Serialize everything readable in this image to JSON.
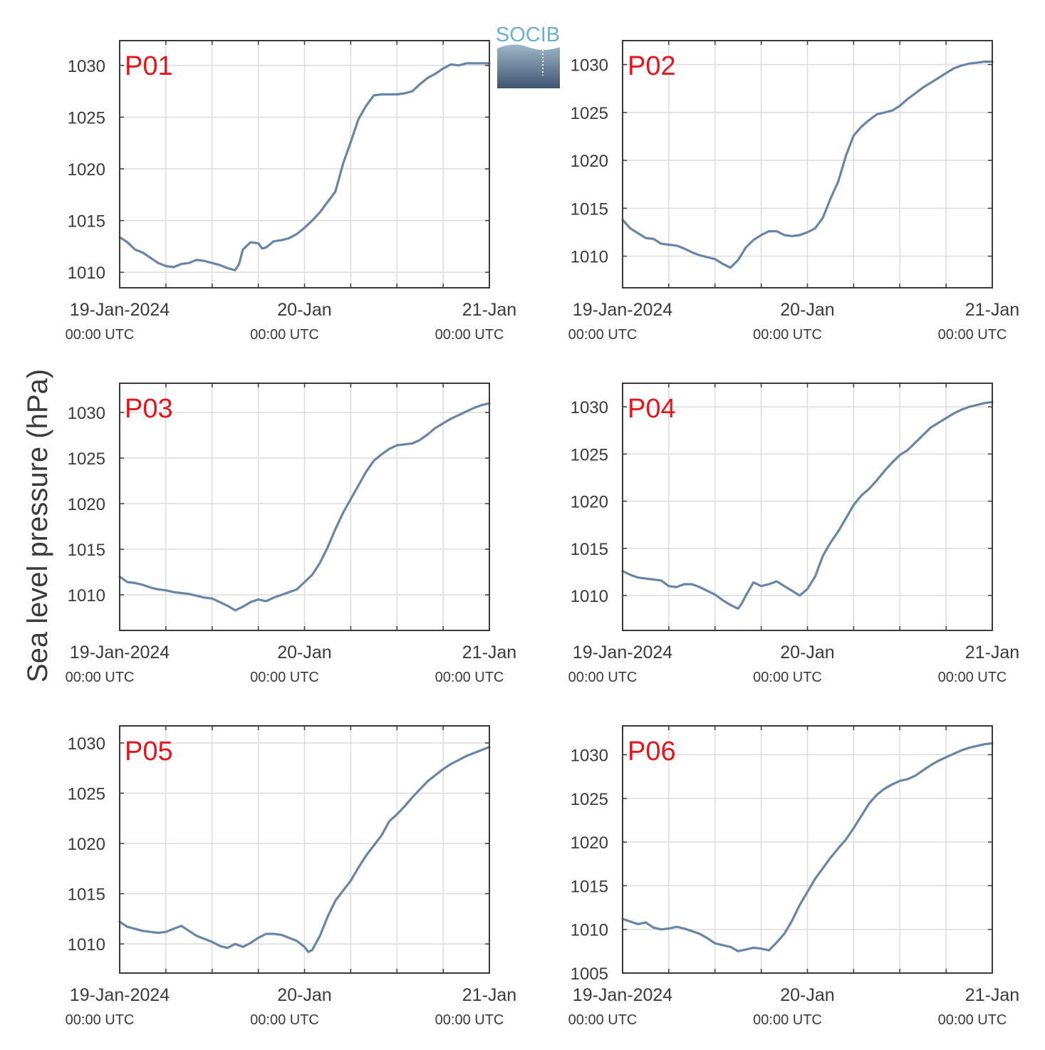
{
  "figure": {
    "ylabel": "Sea level pressure (hPa)",
    "logo_text": "SOCIB",
    "x_tick_labels": [
      "19-Jan-2024",
      "20-Jan",
      "21-Jan"
    ],
    "x_tick_sublabels": [
      "00:00 UTC",
      "00:00 UTC",
      "00:00 UTC"
    ],
    "colors": {
      "line": "#6885a6",
      "label": "#e8141c",
      "grid": "#dcdcdc",
      "axes": "#3a3a3a"
    }
  },
  "chart_data": [
    {
      "type": "line",
      "title": "P01",
      "x_unit": "hours since 19-Jan-2024 00:00 UTC",
      "xlim": [
        0,
        48
      ],
      "ylim": [
        1008.5,
        1032.4
      ],
      "yticks": [
        1010,
        1015,
        1020,
        1025,
        1030
      ],
      "grid": true,
      "x": [
        0,
        1,
        2,
        3,
        4,
        5,
        6,
        7,
        8,
        9,
        10,
        11,
        12,
        13,
        14,
        15,
        15.5,
        16,
        17,
        18,
        18.5,
        19,
        20,
        21,
        22,
        23,
        24,
        25,
        26,
        27,
        28,
        29,
        30,
        31,
        32,
        33,
        34,
        35,
        36,
        37,
        38,
        39,
        40,
        41,
        42,
        43,
        44,
        45,
        46,
        47,
        48
      ],
      "y": [
        1013.4,
        1012.9,
        1012.2,
        1011.9,
        1011.4,
        1010.9,
        1010.6,
        1010.5,
        1010.8,
        1010.9,
        1011.2,
        1011.1,
        1010.9,
        1010.7,
        1010.4,
        1010.2,
        1010.8,
        1012.2,
        1012.9,
        1012.8,
        1012.3,
        1012.4,
        1013.0,
        1013.1,
        1013.3,
        1013.7,
        1014.3,
        1015.0,
        1015.8,
        1016.8,
        1017.8,
        1020.5,
        1022.6,
        1024.8,
        1026.1,
        1027.1,
        1027.2,
        1027.2,
        1027.2,
        1027.3,
        1027.5,
        1028.2,
        1028.8,
        1029.2,
        1029.7,
        1030.1,
        1030.0,
        1030.2,
        1030.2,
        1030.2,
        1030.2
      ]
    },
    {
      "type": "line",
      "title": "P02",
      "x_unit": "hours since 19-Jan-2024 00:00 UTC",
      "xlim": [
        0,
        48
      ],
      "ylim": [
        1006.7,
        1032.5
      ],
      "yticks": [
        1010,
        1015,
        1020,
        1025,
        1030
      ],
      "grid": true,
      "x": [
        0,
        1,
        2,
        3,
        4,
        5,
        6,
        7,
        8,
        9,
        10,
        11,
        12,
        13,
        14,
        15,
        16,
        17,
        18,
        19,
        20,
        21,
        22,
        23,
        24,
        25,
        26,
        27,
        28,
        29,
        30,
        31,
        32,
        33,
        34,
        35,
        36,
        37,
        38,
        39,
        40,
        41,
        42,
        43,
        44,
        45,
        46,
        47,
        48
      ],
      "y": [
        1013.8,
        1012.9,
        1012.4,
        1011.9,
        1011.8,
        1011.3,
        1011.2,
        1011.1,
        1010.8,
        1010.4,
        1010.1,
        1009.9,
        1009.7,
        1009.2,
        1008.8,
        1009.6,
        1010.9,
        1011.7,
        1012.2,
        1012.6,
        1012.6,
        1012.2,
        1012.1,
        1012.2,
        1012.5,
        1012.9,
        1014.0,
        1016.0,
        1017.8,
        1020.5,
        1022.6,
        1023.5,
        1024.2,
        1024.8,
        1025.0,
        1025.2,
        1025.7,
        1026.4,
        1027.0,
        1027.6,
        1028.1,
        1028.6,
        1029.1,
        1029.6,
        1029.9,
        1030.1,
        1030.2,
        1030.3,
        1030.3
      ]
    },
    {
      "type": "line",
      "title": "P03",
      "x_unit": "hours since 19-Jan-2024 00:00 UTC",
      "xlim": [
        0,
        48
      ],
      "ylim": [
        1006.1,
        1033.2
      ],
      "yticks": [
        1010,
        1015,
        1020,
        1025,
        1030
      ],
      "grid": true,
      "x": [
        0,
        1,
        2,
        3,
        4,
        5,
        6,
        7,
        8,
        9,
        10,
        11,
        12,
        13,
        14,
        15,
        16,
        17,
        18,
        19,
        20,
        21,
        22,
        23,
        24,
        25,
        26,
        27,
        28,
        29,
        30,
        31,
        32,
        33,
        34,
        35,
        36,
        37,
        38,
        39,
        40,
        41,
        42,
        43,
        44,
        45,
        46,
        47,
        48
      ],
      "y": [
        1012.0,
        1011.4,
        1011.3,
        1011.1,
        1010.8,
        1010.6,
        1010.5,
        1010.3,
        1010.2,
        1010.1,
        1009.9,
        1009.7,
        1009.6,
        1009.2,
        1008.8,
        1008.3,
        1008.7,
        1009.2,
        1009.5,
        1009.3,
        1009.7,
        1010.0,
        1010.3,
        1010.6,
        1011.4,
        1012.2,
        1013.5,
        1015.2,
        1017.2,
        1019.0,
        1020.5,
        1022.0,
        1023.5,
        1024.7,
        1025.4,
        1026.0,
        1026.4,
        1026.5,
        1026.6,
        1027.0,
        1027.6,
        1028.3,
        1028.8,
        1029.3,
        1029.7,
        1030.1,
        1030.5,
        1030.8,
        1031.0
      ]
    },
    {
      "type": "line",
      "title": "P04",
      "x_unit": "hours since 19-Jan-2024 00:00 UTC",
      "xlim": [
        0,
        48
      ],
      "ylim": [
        1006.3,
        1032.5
      ],
      "yticks": [
        1010,
        1015,
        1020,
        1025,
        1030
      ],
      "grid": true,
      "x": [
        0,
        1,
        2,
        3,
        4,
        5,
        6,
        7,
        8,
        9,
        10,
        11,
        12,
        13,
        14,
        15,
        15.5,
        16,
        17,
        18,
        19,
        20,
        21,
        22,
        23,
        24,
        25,
        26,
        27,
        28,
        29,
        30,
        31,
        32,
        33,
        34,
        35,
        36,
        37,
        38,
        39,
        40,
        41,
        42,
        43,
        44,
        45,
        46,
        47,
        48
      ],
      "y": [
        1012.6,
        1012.2,
        1011.9,
        1011.8,
        1011.7,
        1011.6,
        1011.0,
        1010.9,
        1011.2,
        1011.2,
        1010.9,
        1010.5,
        1010.1,
        1009.5,
        1009.0,
        1008.6,
        1009.2,
        1010.0,
        1011.4,
        1011.0,
        1011.2,
        1011.5,
        1011.0,
        1010.5,
        1010.0,
        1010.7,
        1012.0,
        1014.2,
        1015.6,
        1016.8,
        1018.2,
        1019.6,
        1020.6,
        1021.3,
        1022.2,
        1023.2,
        1024.1,
        1024.9,
        1025.4,
        1026.2,
        1027.0,
        1027.8,
        1028.3,
        1028.8,
        1029.3,
        1029.7,
        1030.0,
        1030.2,
        1030.4,
        1030.5
      ]
    },
    {
      "type": "line",
      "title": "P05",
      "x_unit": "hours since 19-Jan-2024 00:00 UTC",
      "xlim": [
        0,
        48
      ],
      "ylim": [
        1007.1,
        1031.7
      ],
      "yticks": [
        1010,
        1015,
        1020,
        1025,
        1030
      ],
      "grid": true,
      "x": [
        0,
        1,
        2,
        3,
        4,
        5,
        6,
        7,
        8,
        9,
        10,
        11,
        12,
        13,
        14,
        15,
        16,
        17,
        18,
        19,
        20,
        21,
        22,
        23,
        24,
        24.5,
        25,
        26,
        27,
        28,
        29,
        30,
        31,
        32,
        33,
        34,
        35,
        36,
        37,
        38,
        39,
        40,
        41,
        42,
        43,
        44,
        45,
        46,
        47,
        48
      ],
      "y": [
        1012.2,
        1011.7,
        1011.5,
        1011.3,
        1011.2,
        1011.1,
        1011.2,
        1011.5,
        1011.8,
        1011.3,
        1010.8,
        1010.5,
        1010.2,
        1009.8,
        1009.6,
        1010.0,
        1009.7,
        1010.1,
        1010.6,
        1011.0,
        1011.0,
        1010.9,
        1010.6,
        1010.3,
        1009.7,
        1009.2,
        1009.4,
        1010.8,
        1012.7,
        1014.3,
        1015.3,
        1016.3,
        1017.6,
        1018.8,
        1019.8,
        1020.8,
        1022.2,
        1022.9,
        1023.7,
        1024.6,
        1025.4,
        1026.2,
        1026.8,
        1027.4,
        1027.9,
        1028.3,
        1028.7,
        1029.0,
        1029.3,
        1029.6
      ]
    },
    {
      "type": "line",
      "title": "P06",
      "x_unit": "hours since 19-Jan-2024 00:00 UTC",
      "xlim": [
        0,
        48
      ],
      "ylim": [
        1005,
        1033.3
      ],
      "yticks": [
        1005,
        1010,
        1015,
        1020,
        1025,
        1030
      ],
      "grid": true,
      "x": [
        0,
        1,
        2,
        3,
        4,
        5,
        6,
        7,
        8,
        9,
        10,
        11,
        12,
        13,
        14,
        15,
        16,
        17,
        18,
        19,
        20,
        21,
        22,
        23,
        24,
        25,
        26,
        27,
        28,
        29,
        30,
        31,
        32,
        33,
        34,
        35,
        36,
        37,
        38,
        39,
        40,
        41,
        42,
        43,
        44,
        45,
        46,
        47,
        48
      ],
      "y": [
        1011.2,
        1010.9,
        1010.6,
        1010.8,
        1010.2,
        1010.0,
        1010.1,
        1010.3,
        1010.1,
        1009.8,
        1009.5,
        1009.0,
        1008.4,
        1008.2,
        1008.0,
        1007.5,
        1007.7,
        1007.9,
        1007.8,
        1007.6,
        1008.5,
        1009.5,
        1011.0,
        1012.8,
        1014.3,
        1015.8,
        1017.0,
        1018.2,
        1019.3,
        1020.3,
        1021.6,
        1023.0,
        1024.4,
        1025.4,
        1026.1,
        1026.6,
        1027.0,
        1027.2,
        1027.6,
        1028.2,
        1028.8,
        1029.3,
        1029.7,
        1030.1,
        1030.5,
        1030.8,
        1031.0,
        1031.2,
        1031.3
      ]
    }
  ]
}
